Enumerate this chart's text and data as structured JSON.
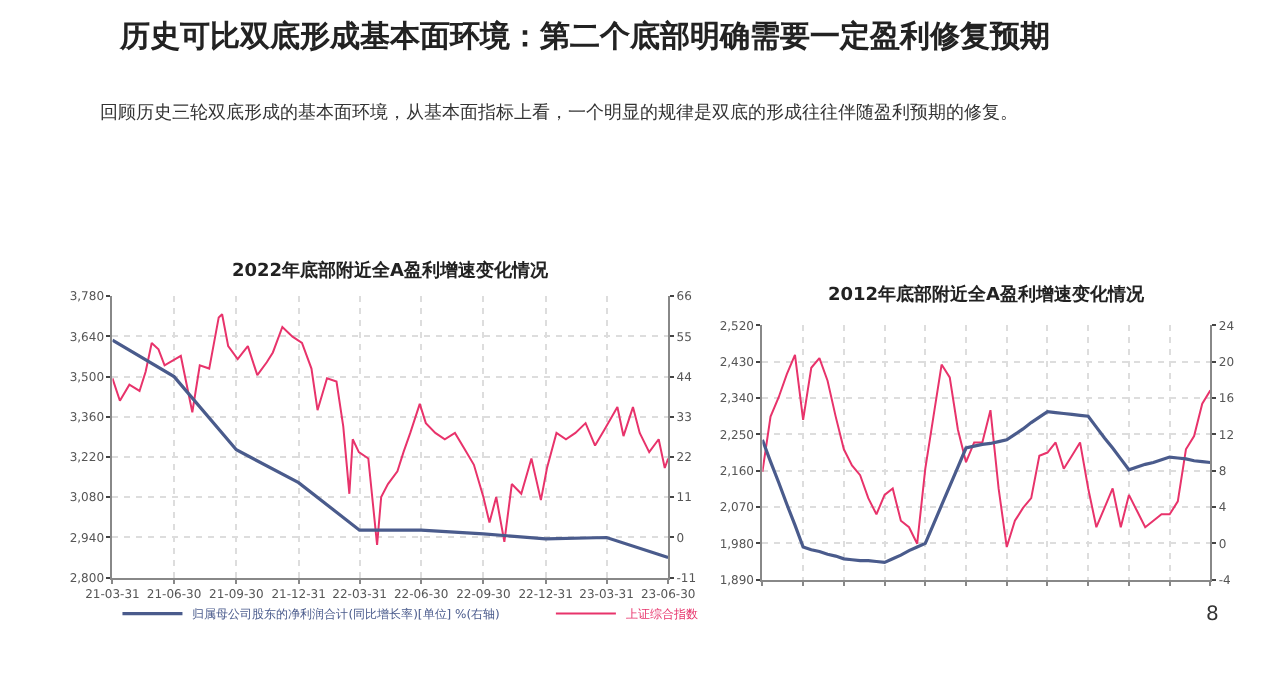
{
  "chart_data": [
    {
      "type": "other",
      "title": "历史可比双底形成基本面环境：第二个底部明确需要一定盈利修复预期",
      "annotations": [
        "回顾历史三轮双底形成的基本面环境，从基本面指标上看，一个明显的规律是双底的形成往往伴随盈利预期的修复。",
        "8"
      ]
    },
    {
      "type": "line",
      "title": "2022年底部附近全A盈利增速变化情况",
      "grid": true,
      "legend": "bottom",
      "xlim": [
        "2021-03-31",
        "2023-06-30"
      ],
      "xticks": [
        {
          "value": "2021-03-31",
          "label": "21-03-31"
        },
        {
          "value": "2021-06-30",
          "label": "21-06-30"
        },
        {
          "value": "2021-09-30",
          "label": "21-09-30"
        },
        {
          "value": "2021-12-31",
          "label": "21-12-31"
        },
        {
          "value": "2022-03-31",
          "label": "22-03-31"
        },
        {
          "value": "2022-06-30",
          "label": "22-06-30"
        },
        {
          "value": "2022-09-30",
          "label": "22-09-30"
        },
        {
          "value": "2022-12-31",
          "label": "22-12-31"
        },
        {
          "value": "2023-03-31",
          "label": "23-03-31"
        },
        {
          "value": "2023-06-30",
          "label": "23-06-30"
        }
      ],
      "ylim": [
        2800,
        3780
      ],
      "yticks": [
        {
          "value": 2800,
          "label": "2,800"
        },
        {
          "value": 2940,
          "label": "2,940"
        },
        {
          "value": 3080,
          "label": "3,080"
        },
        {
          "value": 3220,
          "label": "3,220"
        },
        {
          "value": 3360,
          "label": "3,360"
        },
        {
          "value": 3500,
          "label": "3,500"
        },
        {
          "value": 3640,
          "label": "3,640"
        },
        {
          "value": 3780,
          "label": "3,780"
        }
      ],
      "y2lim": [
        -11,
        66
      ],
      "y2ticks": [
        -11,
        0,
        11,
        22,
        33,
        44,
        55,
        66
      ],
      "series": [
        {
          "name": "归属母公司股东的净利润合计(同比增长率)[单位] %(右轴)",
          "color": "#4a5b8c",
          "axis": "y2",
          "x": [
            "2021-03-31",
            "2021-06-30",
            "2021-09-30",
            "2021-12-31",
            "2022-03-31",
            "2022-06-30",
            "2022-09-30",
            "2022-12-31",
            "2023-03-31",
            "2023-06-30"
          ],
          "values": [
            54,
            44,
            24,
            15,
            2,
            2,
            1,
            -0.4,
            0,
            -5.5
          ]
        },
        {
          "name": "上证综合指数",
          "color": "#e8336b",
          "x": [
            "2021-03-31",
            "2021-04-11",
            "2021-04-25",
            "2021-05-10",
            "2021-05-19",
            "2021-05-28",
            "2021-06-07",
            "2021-06-16",
            "2021-07-10",
            "2021-07-27",
            "2021-08-07",
            "2021-08-21",
            "2021-09-04",
            "2021-09-09",
            "2021-09-18",
            "2021-10-02",
            "2021-10-17",
            "2021-10-31",
            "2021-11-14",
            "2021-11-23",
            "2021-12-07",
            "2021-12-22",
            "2022-01-05",
            "2022-01-19",
            "2022-01-28",
            "2022-02-11",
            "2022-02-25",
            "2022-03-07",
            "2022-03-16",
            "2022-03-21",
            "2022-03-30",
            "2022-04-13",
            "2022-04-26",
            "2022-05-02",
            "2022-05-12",
            "2022-05-26",
            "2022-06-04",
            "2022-06-14",
            "2022-06-28",
            "2022-07-07",
            "2022-07-21",
            "2022-08-04",
            "2022-08-19",
            "2022-09-02",
            "2022-09-16",
            "2022-09-30",
            "2022-10-09",
            "2022-10-19",
            "2022-10-31",
            "2022-11-11",
            "2022-11-25",
            "2022-12-10",
            "2022-12-24",
            "2023-01-02",
            "2023-01-16",
            "2023-01-30",
            "2023-02-13",
            "2023-02-28",
            "2023-03-14",
            "2023-03-28",
            "2023-04-16",
            "2023-04-25",
            "2023-05-09",
            "2023-05-19",
            "2023-06-02",
            "2023-06-16",
            "2023-06-25",
            "2023-06-30"
          ],
          "values": [
            3494,
            3416,
            3472,
            3450,
            3517,
            3617,
            3595,
            3539,
            3572,
            3376,
            3539,
            3528,
            3706,
            3717,
            3606,
            3561,
            3606,
            3505,
            3550,
            3584,
            3673,
            3639,
            3617,
            3528,
            3383,
            3494,
            3483,
            3327,
            3092,
            3282,
            3237,
            3215,
            2914,
            3081,
            3126,
            3170,
            3237,
            3304,
            3405,
            3338,
            3304,
            3282,
            3304,
            3249,
            3193,
            3081,
            2992,
            3081,
            2925,
            3126,
            3092,
            3215,
            3070,
            3182,
            3304,
            3282,
            3304,
            3338,
            3260,
            3316,
            3394,
            3293,
            3394,
            3304,
            3237,
            3282,
            3182,
            3215
          ]
        }
      ]
    },
    {
      "type": "line",
      "title": "2012年底部附近全A盈利增速变化情况",
      "grid": true,
      "tick_labels": "y",
      "categories": [
        null,
        null,
        null,
        null,
        null,
        null,
        null,
        null,
        null,
        null,
        null,
        null,
        null,
        null,
        null,
        null,
        null,
        null,
        null,
        null,
        null,
        null,
        null,
        null,
        null,
        null,
        null,
        null,
        null,
        null,
        null,
        null,
        null,
        null,
        null,
        null,
        null,
        null,
        null,
        null,
        null,
        null,
        null,
        null,
        null,
        null,
        null,
        null,
        null,
        null,
        null,
        null,
        null,
        null,
        null,
        null
      ],
      "ylim": [
        1890,
        2520
      ],
      "yticks": [
        {
          "value": 1890,
          "label": "1,890"
        },
        {
          "value": 1980,
          "label": "1,980"
        },
        {
          "value": 2070,
          "label": "2,070"
        },
        {
          "value": 2160,
          "label": "2,160"
        },
        {
          "value": 2250,
          "label": "2,250"
        },
        {
          "value": 2340,
          "label": "2,340"
        },
        {
          "value": 2430,
          "label": "2,430"
        },
        {
          "value": 2520,
          "label": "2,520"
        }
      ],
      "y2lim": [
        -4,
        24
      ],
      "y2ticks": [
        -4,
        0,
        4,
        8,
        12,
        16,
        20,
        24
      ],
      "series": [
        {
          "color": "#4a5b8c",
          "axis": "y2",
          "values": [
            11.4,
            9.0,
            6.7,
            4.3,
            2.0,
            -0.4,
            -0.7,
            -0.9,
            -1.2,
            -1.4,
            -1.7,
            -1.8,
            -1.9,
            -1.9,
            -2.0,
            -2.1,
            -1.7,
            -1.3,
            -0.8,
            -0.4,
            0,
            2.1,
            4.2,
            6.3,
            8.4,
            10.5,
            10.7,
            10.9,
            11.0,
            11.2,
            11.4,
            12.0,
            12.6,
            13.3,
            13.9,
            14.5,
            14.4,
            14.3,
            14.2,
            14.1,
            14,
            12.8,
            11.6,
            10.5,
            9.3,
            8.1,
            8.4,
            8.7,
            8.9,
            9.2,
            9.5,
            9.4,
            9.3,
            9.1,
            9.0,
            8.9
          ]
        },
        {
          "color": "#e8336b",
          "values": [
            2157,
            2294,
            2342,
            2399,
            2447,
            2286,
            2415,
            2439,
            2383,
            2294,
            2213,
            2173,
            2149,
            2092,
            2052,
            2100,
            2116,
            2036,
            2020,
            1979,
            2165,
            2294,
            2423,
            2391,
            2262,
            2181,
            2230,
            2230,
            2310,
            2116,
            1971,
            2036,
            2068,
            2092,
            2197,
            2205,
            2230,
            2165,
            2197,
            2230,
            2116,
            2020,
            2068,
            2116,
            2020,
            2100,
            2060,
            2020,
            2036,
            2052,
            2052,
            2084,
            2213,
            2246,
            2326,
            2359
          ]
        }
      ]
    }
  ]
}
